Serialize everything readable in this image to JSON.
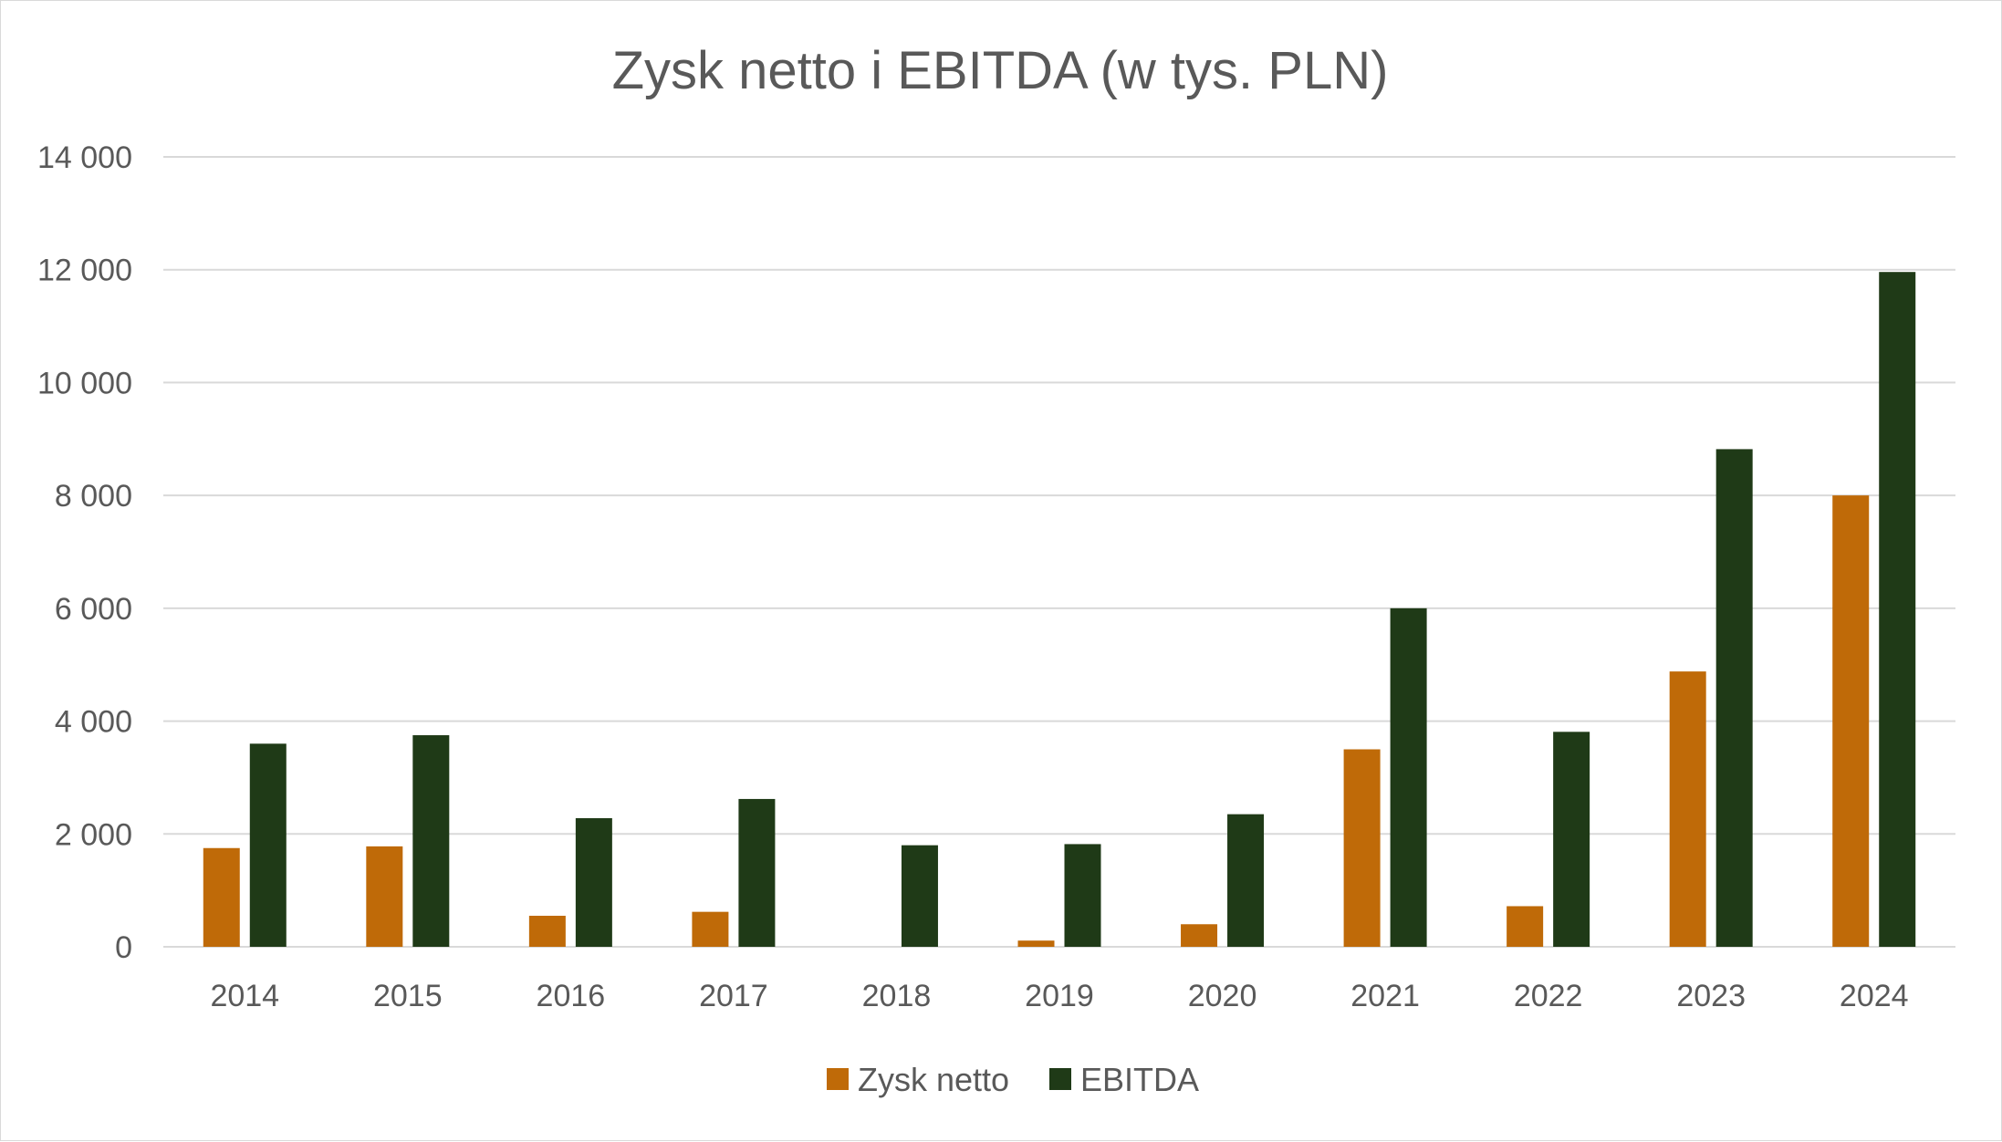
{
  "chart_data": {
    "type": "bar",
    "title": "Zysk netto i EBITDA (w tys. PLN)",
    "xlabel": "",
    "ylabel": "",
    "categories": [
      "2014",
      "2015",
      "2016",
      "2017",
      "2018",
      "2019",
      "2020",
      "2021",
      "2022",
      "2023",
      "2024"
    ],
    "series": [
      {
        "name": "Zysk netto",
        "color": "#BF6A08",
        "values": [
          1750,
          1780,
          550,
          620,
          0,
          110,
          400,
          3500,
          720,
          4880,
          8000
        ]
      },
      {
        "name": "EBITDA",
        "color": "#1F3A17",
        "values": [
          3600,
          3750,
          2280,
          2620,
          1800,
          1820,
          2350,
          6000,
          3810,
          8820,
          11960
        ]
      }
    ],
    "ylim": [
      0,
      14000
    ],
    "y_ticks": [
      0,
      2000,
      4000,
      6000,
      8000,
      10000,
      12000,
      14000
    ],
    "y_tick_labels": [
      "0",
      "2 000",
      "4 000",
      "6 000",
      "8 000",
      "10 000",
      "12 000",
      "14 000"
    ],
    "grid": true,
    "legend_position": "bottom"
  }
}
